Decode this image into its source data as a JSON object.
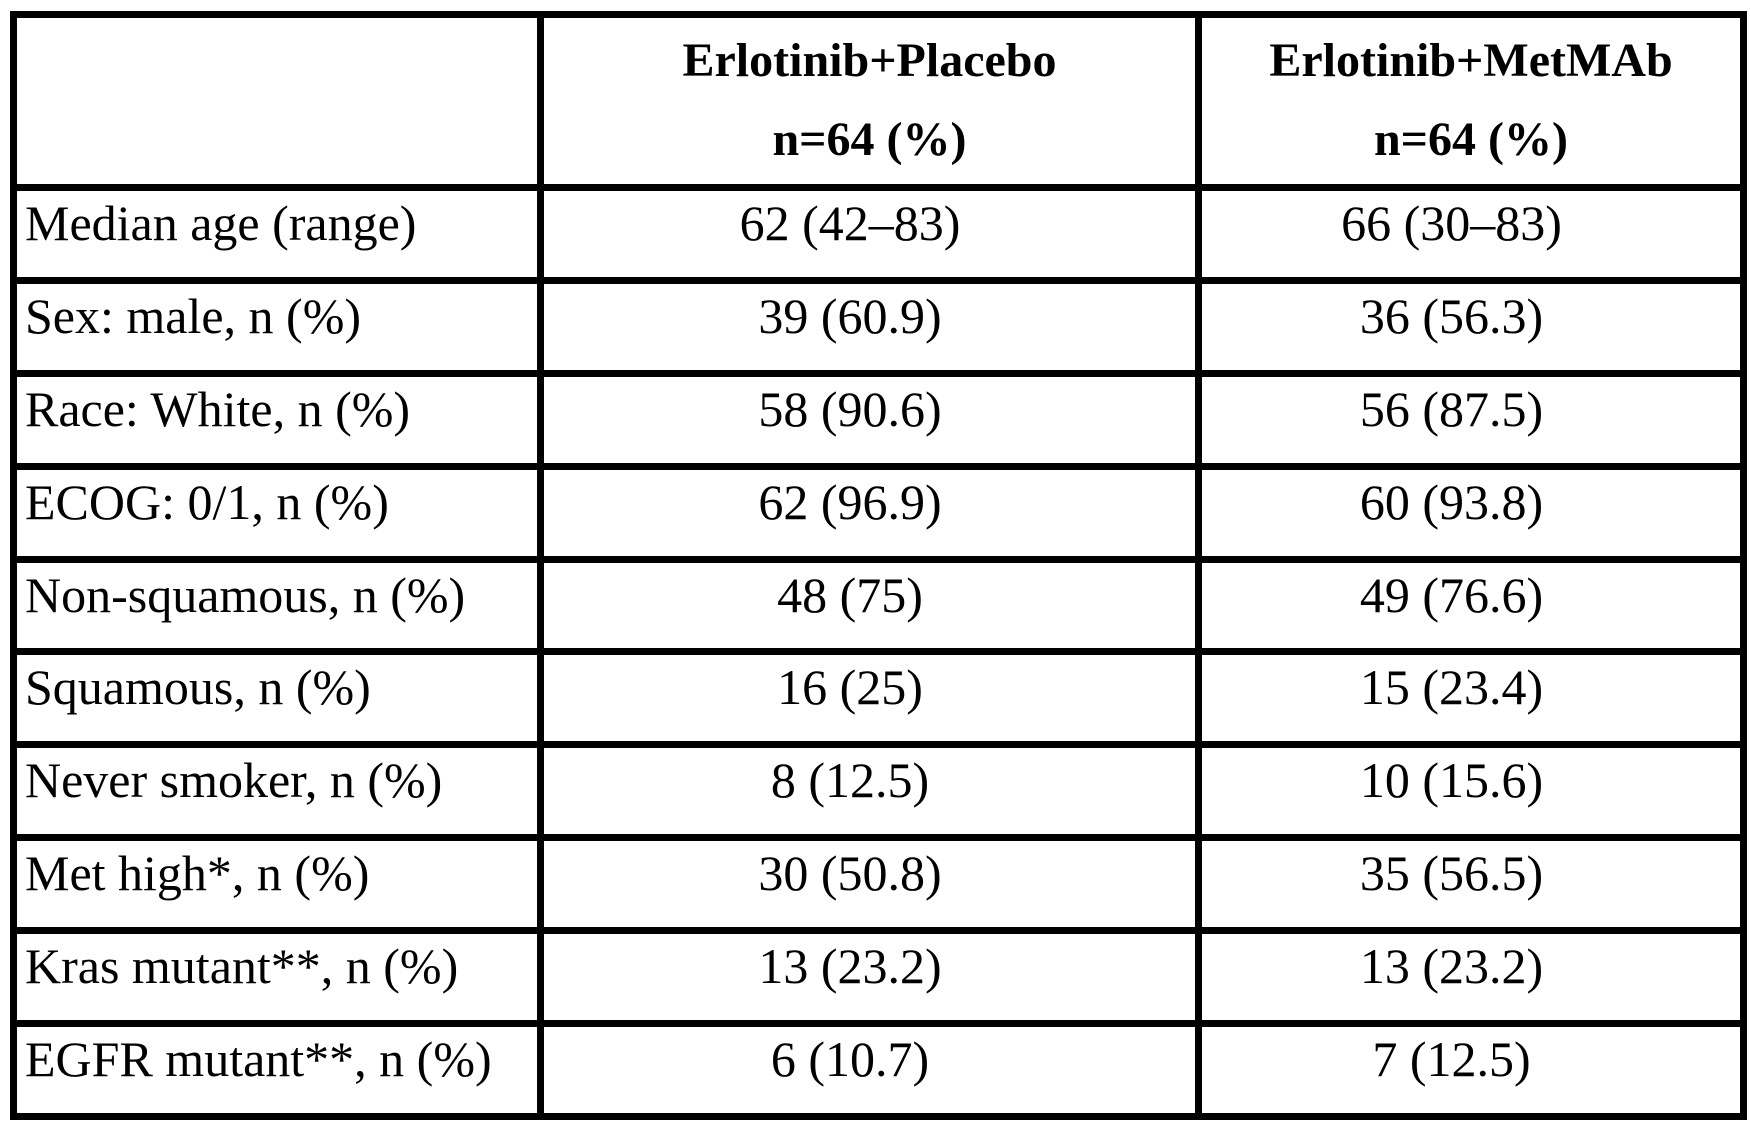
{
  "table": {
    "header": {
      "col1": "",
      "col2": {
        "line1": "Erlotinib+Placebo",
        "line2": "n=64 (%)"
      },
      "col3": {
        "line1": "Erlotinib+MetMAb",
        "line2": "n=64 (%)"
      }
    },
    "rows": [
      {
        "label": "Median age (range)",
        "placebo": "62 (42–83)",
        "metmab": "66 (30–83)"
      },
      {
        "label": "Sex: male, n (%)",
        "placebo": "39 (60.9)",
        "metmab": "36 (56.3)"
      },
      {
        "label": "Race: White, n (%)",
        "placebo": "58 (90.6)",
        "metmab": "56 (87.5)"
      },
      {
        "label": "ECOG: 0/1, n (%)",
        "placebo": "62 (96.9)",
        "metmab": "60 (93.8)"
      },
      {
        "label": "Non-squamous, n (%)",
        "placebo": "48 (75)",
        "metmab": "49 (76.6)"
      },
      {
        "label": "Squamous, n (%)",
        "placebo": "16 (25)",
        "metmab": "15 (23.4)"
      },
      {
        "label": "Never smoker, n (%)",
        "placebo": "8 (12.5)",
        "metmab": "10 (15.6)"
      },
      {
        "label": "Met high*, n (%)",
        "placebo": "30 (50.8)",
        "metmab": "35 (56.5)"
      },
      {
        "label": "Kras mutant**, n (%)",
        "placebo": "13 (23.2)",
        "metmab": "13 (23.2)"
      },
      {
        "label": "EGFR mutant**, n (%)",
        "placebo": "6 (10.7)",
        "metmab": "7 (12.5)"
      }
    ],
    "colors": {
      "border": "#000000",
      "text": "#000000",
      "background": "#ffffff"
    }
  }
}
